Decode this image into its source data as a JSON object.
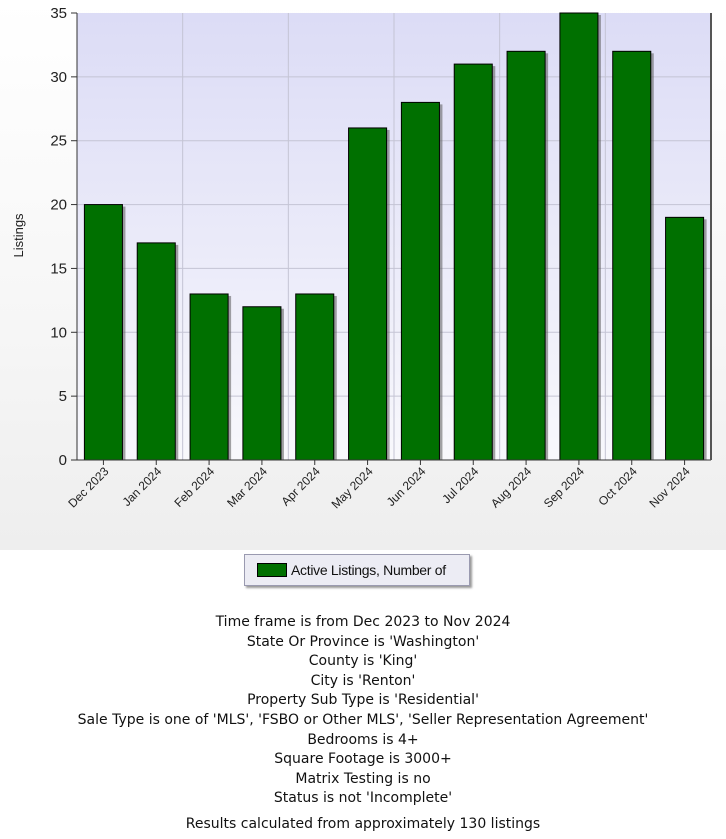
{
  "chart_data": {
    "type": "bar",
    "categories": [
      "Dec 2023",
      "Jan 2024",
      "Feb 2024",
      "Mar 2024",
      "Apr 2024",
      "May 2024",
      "Jun 2024",
      "Jul 2024",
      "Aug 2024",
      "Sep 2024",
      "Oct 2024",
      "Nov 2024"
    ],
    "series": [
      {
        "name": "Active Listings, Number of",
        "values": [
          20,
          17,
          13,
          12,
          13,
          26,
          28,
          31,
          32,
          35,
          32,
          19
        ],
        "color": "#007000"
      }
    ],
    "ylabel": "Listings",
    "ylim": [
      0,
      35
    ],
    "yticks": [
      0,
      5,
      10,
      15,
      20,
      25,
      30,
      35
    ],
    "grid": true,
    "plot_background": "#e8e8f8",
    "legend_position": "bottom-center"
  },
  "legend": {
    "label": "Active Listings, Number of",
    "color": "#007000"
  },
  "criteria": [
    "Time frame is from Dec 2023 to Nov 2024",
    "State Or Province is 'Washington'",
    "County is 'King'",
    "City is 'Renton'",
    "Property Sub Type is 'Residential'",
    "Sale Type is one of 'MLS', 'FSBO or Other MLS', 'Seller Representation Agreement'",
    "Bedrooms is 4+",
    "Square Footage is 3000+",
    "Matrix Testing is no",
    "Status is not 'Incomplete'"
  ],
  "results": "Results calculated from approximately 130 listings"
}
